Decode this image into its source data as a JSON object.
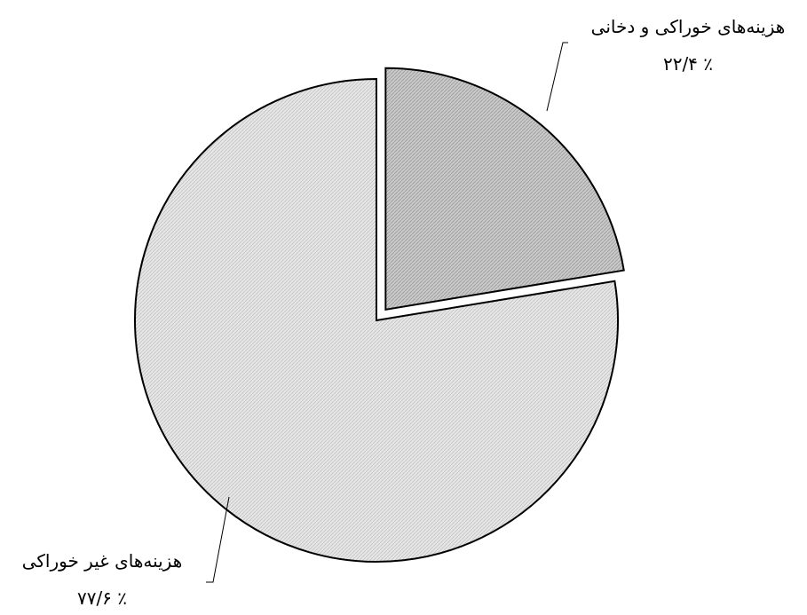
{
  "chart_data": {
    "type": "pie",
    "slices": [
      {
        "label": "هزینه‌های خوراکی و دخانی",
        "value_label": "٪ ۲۲/۴",
        "value": 22.4,
        "exploded": true,
        "color": "#c8c8c8"
      },
      {
        "label": "هزینه‌های غیر خوراکی",
        "value_label": "٪ ۷۷/۶",
        "value": 77.6,
        "exploded": false,
        "color": "#e0e0e0"
      }
    ],
    "start_angle": "12 o'clock",
    "direction": "clockwise",
    "legend": "none",
    "label_style": "leader-lines"
  }
}
